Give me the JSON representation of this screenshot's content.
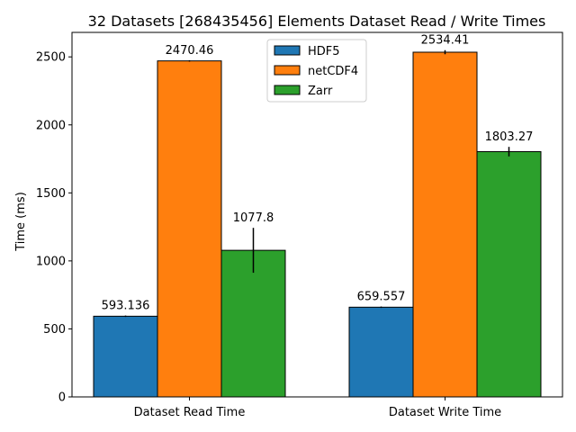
{
  "chart_data": {
    "type": "bar",
    "title": "32 Datasets [268435456] Elements Dataset Read / Write Times",
    "xlabel": "",
    "ylabel": "Time (ms)",
    "categories": [
      "Dataset Read Time",
      "Dataset Write Time"
    ],
    "ylim": [
      0,
      2680
    ],
    "yticks": [
      0,
      500,
      1000,
      1500,
      2000,
      2500
    ],
    "legend_position": "top-center",
    "grid": false,
    "series": [
      {
        "name": "HDF5",
        "color": "#1f77b4",
        "values": [
          593.136,
          659.557
        ],
        "errors": [
          5,
          5
        ],
        "labels": [
          "593.136",
          "659.557"
        ]
      },
      {
        "name": "netCDF4",
        "color": "#ff7f0e",
        "values": [
          2470.46,
          2534.41
        ],
        "errors": [
          5,
          15
        ],
        "labels": [
          "2470.46",
          "2534.41"
        ]
      },
      {
        "name": "Zarr",
        "color": "#2ca02c",
        "values": [
          1077.8,
          1803.27
        ],
        "errors": [
          165,
          35
        ],
        "labels": [
          "1077.8",
          "1803.27"
        ]
      }
    ]
  }
}
